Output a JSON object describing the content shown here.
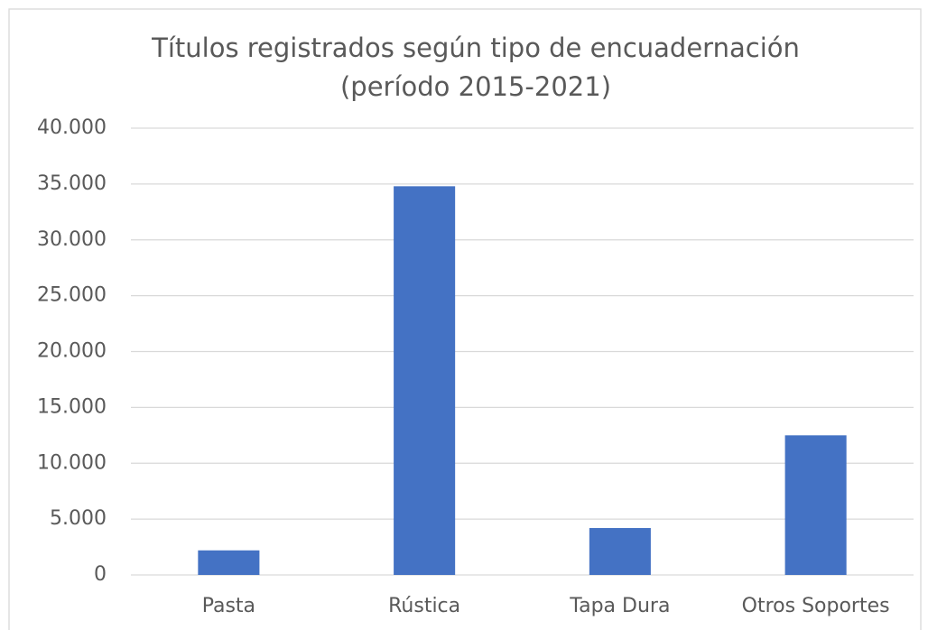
{
  "chart_data": {
    "type": "bar",
    "title": [
      "Títulos registrados según tipo de encuadernación",
      "(período 2015-2021)"
    ],
    "categories": [
      "Pasta",
      "Rústica",
      "Tapa Dura",
      "Otros Soportes"
    ],
    "values": [
      2200,
      34800,
      4200,
      12500
    ],
    "color": "#4472c4",
    "ylim": [
      0,
      40000
    ],
    "yticks": [
      0,
      {
        "value": 5000,
        "label": "5.000"
      },
      {
        "value": 10000,
        "label": "10.000"
      },
      {
        "value": 15000,
        "label": "15.000"
      },
      {
        "value": 20000,
        "label": "20.000"
      },
      {
        "value": 25000,
        "label": "25.000"
      },
      {
        "value": 30000,
        "label": "30.000"
      },
      {
        "value": 35000,
        "label": "35.000"
      },
      {
        "value": 40000,
        "label": "40.000"
      }
    ],
    "grid": true
  }
}
